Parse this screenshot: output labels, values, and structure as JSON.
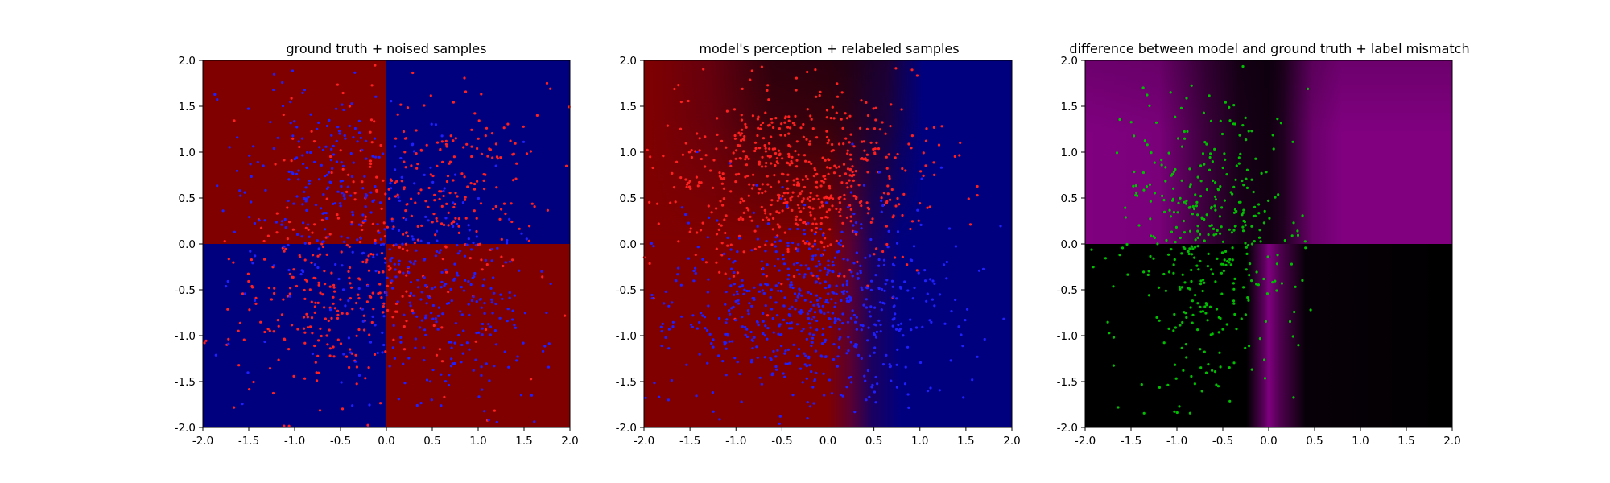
{
  "chart_data": [
    {
      "type": "scatter",
      "title": "ground truth + noised samples",
      "xlim": [
        -2.0,
        2.0
      ],
      "ylim": [
        -2.0,
        2.0
      ],
      "xticks": [
        "-2.0",
        "-1.5",
        "-1.0",
        "-0.5",
        "0.0",
        "0.5",
        "1.0",
        "1.5",
        "2.0"
      ],
      "yticks": [
        "-2.0",
        "-1.5",
        "-1.0",
        "-0.5",
        "0.0",
        "0.5",
        "1.0",
        "1.5",
        "2.0"
      ],
      "background": {
        "kind": "quadrant",
        "colors": {
          "top_left": "#800000",
          "top_right": "#00007f",
          "bottom_left": "#00007f",
          "bottom_right": "#800000"
        }
      },
      "point_sets": [
        {
          "color": "#ff2020",
          "count": 520,
          "pattern": "red-mixed"
        },
        {
          "color": "#2020ff",
          "count": 520,
          "pattern": "blue-mixed"
        }
      ]
    },
    {
      "type": "scatter",
      "title": "model's perception + relabeled samples",
      "xlim": [
        -2.0,
        2.0
      ],
      "ylim": [
        -2.0,
        2.0
      ],
      "xticks": [
        "-2.0",
        "-1.5",
        "-1.0",
        "-0.5",
        "0.0",
        "0.5",
        "1.0",
        "1.5",
        "2.0"
      ],
      "yticks": [
        "-2.0",
        "-1.5",
        "-1.0",
        "-0.5",
        "0.0",
        "0.5",
        "1.0",
        "1.5",
        "2.0"
      ],
      "background": {
        "kind": "gradient",
        "colors": {
          "left": "#800000",
          "right": "#00007f",
          "top_mid": "#1a0010"
        }
      },
      "point_sets": [
        {
          "color": "#ff2020",
          "count": 620,
          "pattern": "upper"
        },
        {
          "color": "#2020ff",
          "count": 650,
          "pattern": "lower"
        }
      ]
    },
    {
      "type": "scatter",
      "title": "difference between model and ground truth + label mismatch",
      "xlim": [
        -2.0,
        2.0
      ],
      "ylim": [
        -2.0,
        2.0
      ],
      "xticks": [
        "-2.0",
        "-1.5",
        "-1.0",
        "-0.5",
        "0.0",
        "0.5",
        "1.0",
        "1.5",
        "2.0"
      ],
      "yticks": [
        "-2.0",
        "-1.5",
        "-1.0",
        "-0.5",
        "0.0",
        "0.5",
        "1.0",
        "1.5",
        "2.0"
      ],
      "background": {
        "kind": "difference",
        "colors": {
          "high": "#800080",
          "low": "#000000"
        }
      },
      "point_sets": [
        {
          "color": "#00c000",
          "count": 420,
          "pattern": "green-left"
        }
      ]
    }
  ]
}
